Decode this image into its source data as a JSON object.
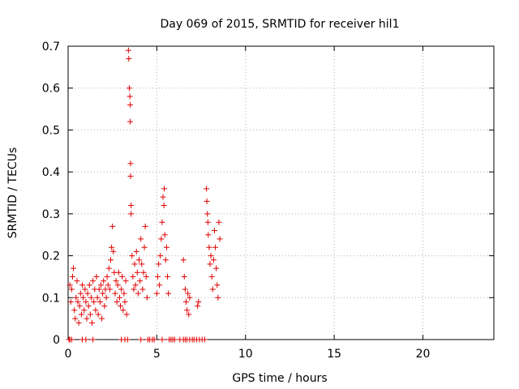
{
  "chart_data": {
    "type": "scatter",
    "title": "Day 069 of 2015, SRMTID for receiver hil1",
    "xlabel": "GPS time / hours",
    "ylabel": "SRMTID / TECUs",
    "xlim": [
      0,
      24
    ],
    "ylim": [
      0,
      0.7
    ],
    "xticks": [
      0,
      5,
      10,
      15,
      20
    ],
    "xtick_labels": [
      "0",
      "5",
      "10",
      "15",
      "20"
    ],
    "yticks": [
      0,
      0.1,
      0.2,
      0.3,
      0.4,
      0.5,
      0.6,
      0.7
    ],
    "ytick_labels": [
      "0",
      "0.1",
      "0.2",
      "0.3",
      "0.4",
      "0.5",
      "0.6",
      "0.7"
    ],
    "grid": true,
    "marker": "plus",
    "series": [
      {
        "name": "SRMTID",
        "color": "#e00000",
        "points": [
          [
            0.05,
            0.0
          ],
          [
            0.1,
            0.0
          ],
          [
            0.2,
            0.0
          ],
          [
            0.8,
            0.0
          ],
          [
            1.0,
            0.0
          ],
          [
            1.4,
            0.0
          ],
          [
            3.0,
            0.0
          ],
          [
            3.2,
            0.0
          ],
          [
            3.35,
            0.0
          ],
          [
            4.1,
            0.0
          ],
          [
            4.5,
            0.0
          ],
          [
            4.6,
            0.0
          ],
          [
            4.75,
            0.0
          ],
          [
            4.85,
            0.0
          ],
          [
            5.3,
            0.0
          ],
          [
            5.7,
            0.0
          ],
          [
            5.8,
            0.0
          ],
          [
            5.9,
            0.0
          ],
          [
            6.0,
            0.0
          ],
          [
            6.3,
            0.0
          ],
          [
            6.5,
            0.0
          ],
          [
            6.6,
            0.0
          ],
          [
            6.7,
            0.0
          ],
          [
            6.85,
            0.0
          ],
          [
            7.0,
            0.0
          ],
          [
            7.1,
            0.0
          ],
          [
            7.25,
            0.0
          ],
          [
            7.4,
            0.0
          ],
          [
            7.55,
            0.0
          ],
          [
            7.7,
            0.0
          ],
          [
            0.1,
            0.13
          ],
          [
            0.15,
            0.09
          ],
          [
            0.2,
            0.12
          ],
          [
            0.25,
            0.15
          ],
          [
            0.3,
            0.17
          ],
          [
            0.35,
            0.07
          ],
          [
            0.4,
            0.05
          ],
          [
            0.45,
            0.1
          ],
          [
            0.5,
            0.14
          ],
          [
            0.55,
            0.09
          ],
          [
            0.6,
            0.04
          ],
          [
            0.65,
            0.08
          ],
          [
            0.7,
            0.11
          ],
          [
            0.75,
            0.06
          ],
          [
            0.8,
            0.13
          ],
          [
            0.85,
            0.1
          ],
          [
            0.9,
            0.07
          ],
          [
            0.95,
            0.12
          ],
          [
            1.0,
            0.09
          ],
          [
            1.05,
            0.05
          ],
          [
            1.1,
            0.11
          ],
          [
            1.15,
            0.08
          ],
          [
            1.2,
            0.13
          ],
          [
            1.25,
            0.06
          ],
          [
            1.3,
            0.1
          ],
          [
            1.35,
            0.04
          ],
          [
            1.4,
            0.14
          ],
          [
            1.45,
            0.09
          ],
          [
            1.5,
            0.12
          ],
          [
            1.55,
            0.07
          ],
          [
            1.6,
            0.15
          ],
          [
            1.65,
            0.1
          ],
          [
            1.7,
            0.06
          ],
          [
            1.75,
            0.12
          ],
          [
            1.8,
            0.09
          ],
          [
            1.85,
            0.13
          ],
          [
            1.9,
            0.05
          ],
          [
            1.95,
            0.11
          ],
          [
            2.0,
            0.14
          ],
          [
            2.05,
            0.08
          ],
          [
            2.1,
            0.12
          ],
          [
            2.15,
            0.1
          ],
          [
            2.2,
            0.15
          ],
          [
            2.25,
            0.13
          ],
          [
            2.3,
            0.17
          ],
          [
            2.35,
            0.12
          ],
          [
            2.4,
            0.19
          ],
          [
            2.45,
            0.22
          ],
          [
            2.5,
            0.27
          ],
          [
            2.55,
            0.21
          ],
          [
            2.6,
            0.16
          ],
          [
            2.65,
            0.11
          ],
          [
            2.7,
            0.14
          ],
          [
            2.75,
            0.09
          ],
          [
            2.8,
            0.13
          ],
          [
            2.85,
            0.16
          ],
          [
            2.9,
            0.1
          ],
          [
            2.95,
            0.08
          ],
          [
            3.0,
            0.12
          ],
          [
            3.05,
            0.15
          ],
          [
            3.1,
            0.07
          ],
          [
            3.15,
            0.11
          ],
          [
            3.2,
            0.09
          ],
          [
            3.25,
            0.14
          ],
          [
            3.3,
            0.06
          ],
          [
            3.4,
            0.69
          ],
          [
            3.42,
            0.67
          ],
          [
            3.45,
            0.6
          ],
          [
            3.48,
            0.58
          ],
          [
            3.5,
            0.52
          ],
          [
            3.5,
            0.56
          ],
          [
            3.52,
            0.42
          ],
          [
            3.52,
            0.39
          ],
          [
            3.55,
            0.32
          ],
          [
            3.55,
            0.3
          ],
          [
            3.6,
            0.2
          ],
          [
            3.65,
            0.15
          ],
          [
            3.7,
            0.12
          ],
          [
            3.75,
            0.18
          ],
          [
            3.8,
            0.13
          ],
          [
            3.85,
            0.21
          ],
          [
            3.9,
            0.16
          ],
          [
            3.95,
            0.11
          ],
          [
            4.0,
            0.19
          ],
          [
            4.05,
            0.14
          ],
          [
            4.1,
            0.24
          ],
          [
            4.15,
            0.18
          ],
          [
            4.2,
            0.12
          ],
          [
            4.25,
            0.16
          ],
          [
            4.3,
            0.22
          ],
          [
            4.35,
            0.27
          ],
          [
            4.4,
            0.15
          ],
          [
            4.45,
            0.1
          ],
          [
            5.0,
            0.11
          ],
          [
            5.05,
            0.15
          ],
          [
            5.1,
            0.18
          ],
          [
            5.15,
            0.13
          ],
          [
            5.2,
            0.2
          ],
          [
            5.25,
            0.24
          ],
          [
            5.3,
            0.28
          ],
          [
            5.35,
            0.34
          ],
          [
            5.4,
            0.32
          ],
          [
            5.42,
            0.36
          ],
          [
            5.45,
            0.25
          ],
          [
            5.5,
            0.19
          ],
          [
            5.55,
            0.22
          ],
          [
            5.6,
            0.15
          ],
          [
            5.65,
            0.11
          ],
          [
            6.5,
            0.19
          ],
          [
            6.55,
            0.15
          ],
          [
            6.6,
            0.12
          ],
          [
            6.65,
            0.09
          ],
          [
            6.7,
            0.07
          ],
          [
            6.75,
            0.11
          ],
          [
            6.8,
            0.06
          ],
          [
            6.85,
            0.1
          ],
          [
            7.3,
            0.08
          ],
          [
            7.35,
            0.09
          ],
          [
            7.8,
            0.36
          ],
          [
            7.82,
            0.33
          ],
          [
            7.85,
            0.3
          ],
          [
            7.88,
            0.28
          ],
          [
            7.9,
            0.25
          ],
          [
            7.95,
            0.22
          ],
          [
            8.0,
            0.18
          ],
          [
            8.05,
            0.2
          ],
          [
            8.1,
            0.15
          ],
          [
            8.15,
            0.12
          ],
          [
            8.2,
            0.19
          ],
          [
            8.25,
            0.26
          ],
          [
            8.3,
            0.22
          ],
          [
            8.35,
            0.17
          ],
          [
            8.4,
            0.13
          ],
          [
            8.45,
            0.1
          ],
          [
            8.5,
            0.28
          ],
          [
            8.55,
            0.24
          ]
        ]
      }
    ]
  }
}
